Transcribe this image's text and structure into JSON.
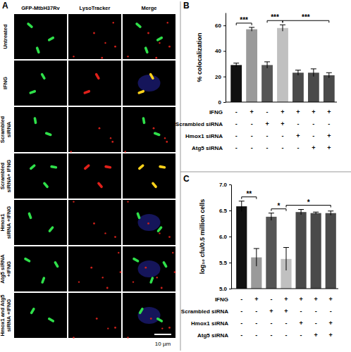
{
  "panel_a": {
    "label": "A",
    "columns": [
      "GFP-MtbH37Rv",
      "LysoTracker",
      "Merge"
    ],
    "rows": [
      [
        "Untreated"
      ],
      [
        "IFNG"
      ],
      [
        "Scrambled",
        "siRNA"
      ],
      [
        "Scrambled",
        "siRNA+ IFNG"
      ],
      [
        "Hmox1",
        "siRNA +IFNG"
      ],
      [
        "Atg5 siRNA",
        "+IFNG"
      ],
      [
        "Hmox1 and Atg5",
        "siRNA +IFNG"
      ]
    ],
    "scale_bar": "10 µm"
  },
  "chart_data": [
    {
      "type": "bar",
      "title": "B",
      "y_label": "% colocalization",
      "categories": [
        null,
        null,
        null,
        null,
        null,
        null,
        null
      ],
      "values": [
        29,
        57,
        29,
        58,
        23,
        23,
        21
      ],
      "errors": [
        1.5,
        1.5,
        2.5,
        2.5,
        2,
        3,
        2
      ],
      "colors": [
        "#111111",
        "#9a9a9a",
        "#555555",
        "#c0c0c0",
        "#4a4a4a",
        "#4a4a4a",
        "#4a4a4a"
      ],
      "ylim": [
        0,
        70
      ],
      "yticks": [
        0,
        20,
        40,
        60
      ],
      "conditions": {
        "rows": [
          "IFNG",
          "Scrambled siRNA",
          "Hmox1 siRNA",
          "Atg5 siRNA"
        ],
        "signs": [
          [
            "-",
            "+",
            "-",
            "+",
            "+",
            "+",
            "+"
          ],
          [
            "-",
            "-",
            "+",
            "+",
            "-",
            "-",
            "-"
          ],
          [
            "-",
            "-",
            "-",
            "-",
            "+",
            "-",
            "+"
          ],
          [
            "-",
            "-",
            "-",
            "-",
            "-",
            "+",
            "+"
          ]
        ]
      },
      "annotations": [
        {
          "text": "***",
          "from": 0,
          "to": 1
        },
        {
          "text": "***",
          "from": 2,
          "to": 3
        },
        {
          "text": "***",
          "from": 3,
          "to": 6
        }
      ]
    },
    {
      "type": "bar",
      "title": "C",
      "y_label": "log₁₀ cfu/0.5 million cells",
      "categories": [
        null,
        null,
        null,
        null,
        null,
        null,
        null
      ],
      "values": [
        6.58,
        5.6,
        6.38,
        5.57,
        6.47,
        6.45,
        6.45
      ],
      "errors": [
        0.1,
        0.17,
        0.07,
        0.22,
        0.05,
        0.02,
        0.04
      ],
      "colors": [
        "#111111",
        "#9a9a9a",
        "#555555",
        "#c0c0c0",
        "#4a4a4a",
        "#4a4a4a",
        "#4a4a4a"
      ],
      "ylim": [
        5.0,
        7.0
      ],
      "yticks": [
        {
          "value": 5.0,
          "label": "5.0"
        },
        {
          "value": 5.5,
          "label": "5.5"
        },
        {
          "value": 6.0,
          "label": "6.0"
        },
        {
          "value": 6.5,
          "label": "6.5"
        },
        {
          "value": 7.0,
          "label": "7.0"
        }
      ],
      "conditions": {
        "rows": [
          "IFNG",
          "Scrambled siRNA",
          "Hmox1 siRNA",
          "Atg5 siRNA"
        ],
        "signs": [
          [
            "-",
            "+",
            "-",
            "+",
            "+",
            "+",
            "+"
          ],
          [
            "-",
            "-",
            "+",
            "+",
            "-",
            "-",
            "-"
          ],
          [
            "-",
            "-",
            "-",
            "-",
            "+",
            "-",
            "+"
          ],
          [
            "-",
            "-",
            "-",
            "-",
            "-",
            "+",
            "+"
          ]
        ]
      },
      "annotations": [
        {
          "text": "**",
          "from": 0,
          "to": 1
        },
        {
          "text": "*",
          "from": 2,
          "to": 3
        },
        {
          "text": "*",
          "from": 3,
          "to": 6
        }
      ]
    }
  ]
}
